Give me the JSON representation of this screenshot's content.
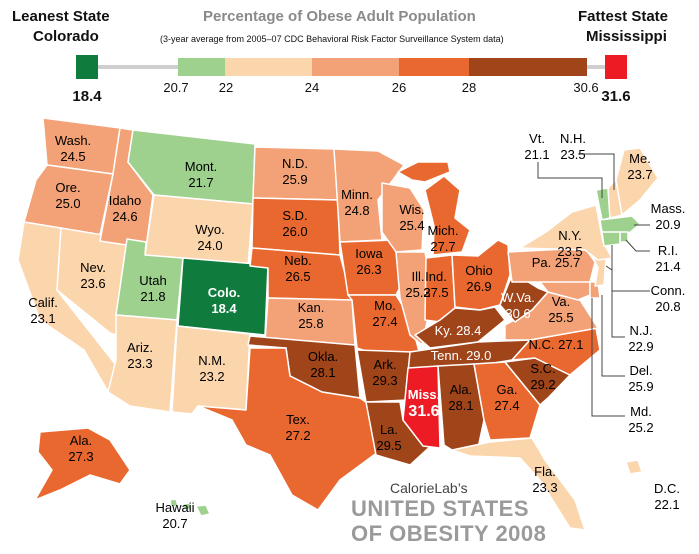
{
  "header": {
    "leanest_title": "Leanest State",
    "leanest_state": "Colorado",
    "leanest_value": "18.4",
    "fattest_title": "Fattest State",
    "fattest_state": "Mississippi",
    "fattest_value": "31.6",
    "title": "Percentage of Obese Adult Population",
    "subtitle": "(3-year average from 2005–07 CDC Behavioral Risk Factor Surveillance System data)"
  },
  "legend": {
    "ticks": [
      "20.7",
      "22",
      "24",
      "26",
      "28",
      "30.6"
    ],
    "bin_colors": [
      "#9ed18e",
      "#fbd5ac",
      "#f3a176",
      "#e8682f",
      "#a0441a"
    ],
    "min_color": "#0f7b3c",
    "max_color": "#ed1c24"
  },
  "states": [
    {
      "abbr": "Wash.",
      "value": "24.5",
      "color": "#f3a176"
    },
    {
      "abbr": "Ore.",
      "value": "25.0",
      "color": "#f3a176"
    },
    {
      "abbr": "Calif.",
      "value": "23.1",
      "color": "#fbd5ac"
    },
    {
      "abbr": "Nev.",
      "value": "23.6",
      "color": "#fbd5ac"
    },
    {
      "abbr": "Idaho",
      "value": "24.6",
      "color": "#f3a176"
    },
    {
      "abbr": "Mont.",
      "value": "21.7",
      "color": "#9ed18e"
    },
    {
      "abbr": "Wyo.",
      "value": "24.0",
      "color": "#fbd5ac"
    },
    {
      "abbr": "Utah",
      "value": "21.8",
      "color": "#9ed18e"
    },
    {
      "abbr": "Colo.",
      "value": "18.4",
      "color": "#0f7b3c"
    },
    {
      "abbr": "Ariz.",
      "value": "23.3",
      "color": "#fbd5ac"
    },
    {
      "abbr": "N.M.",
      "value": "23.2",
      "color": "#fbd5ac"
    },
    {
      "abbr": "N.D.",
      "value": "25.9",
      "color": "#f3a176"
    },
    {
      "abbr": "S.D.",
      "value": "26.0",
      "color": "#e8682f"
    },
    {
      "abbr": "Neb.",
      "value": "26.5",
      "color": "#e8682f"
    },
    {
      "abbr": "Kan.",
      "value": "25.8",
      "color": "#f3a176"
    },
    {
      "abbr": "Okla.",
      "value": "28.1",
      "color": "#a0441a"
    },
    {
      "abbr": "Tex.",
      "value": "27.2",
      "color": "#e8682f"
    },
    {
      "abbr": "Minn.",
      "value": "24.8",
      "color": "#f3a176"
    },
    {
      "abbr": "Iowa",
      "value": "26.3",
      "color": "#e8682f"
    },
    {
      "abbr": "Mo.",
      "value": "27.4",
      "color": "#e8682f"
    },
    {
      "abbr": "Ark.",
      "value": "29.3",
      "color": "#a0441a"
    },
    {
      "abbr": "La.",
      "value": "29.5",
      "color": "#a0441a"
    },
    {
      "abbr": "Wis.",
      "value": "25.4",
      "color": "#f3a176"
    },
    {
      "abbr": "Ill.",
      "value": "25.3",
      "color": "#f3a176"
    },
    {
      "abbr": "Mich.",
      "value": "27.7",
      "color": "#e8682f"
    },
    {
      "abbr": "Ind.",
      "value": "27.5",
      "color": "#e8682f"
    },
    {
      "abbr": "Ohio",
      "value": "26.9",
      "color": "#e8682f"
    },
    {
      "abbr": "Ky.",
      "value": "28.4",
      "color": "#a0441a"
    },
    {
      "abbr": "Tenn.",
      "value": "29.0",
      "color": "#a0441a"
    },
    {
      "abbr": "Miss.",
      "value": "31.6",
      "color": "#ed1c24"
    },
    {
      "abbr": "Ala.",
      "value": "28.1",
      "color": "#a0441a"
    },
    {
      "abbr": "Ga.",
      "value": "27.4",
      "color": "#e8682f"
    },
    {
      "abbr": "Fla.",
      "value": "23.3",
      "color": "#fbd5ac"
    },
    {
      "abbr": "S.C.",
      "value": "29.2",
      "color": "#a0441a"
    },
    {
      "abbr": "N.C.",
      "value": "27.1",
      "color": "#e8682f"
    },
    {
      "abbr": "Va.",
      "value": "25.5",
      "color": "#f3a176"
    },
    {
      "abbr": "W.Va.",
      "value": "30.6",
      "color": "#a0441a"
    },
    {
      "abbr": "Pa.",
      "value": "25.7",
      "color": "#f3a176"
    },
    {
      "abbr": "N.Y.",
      "value": "23.5",
      "color": "#fbd5ac"
    },
    {
      "abbr": "Vt.",
      "value": "21.1",
      "color": "#9ed18e"
    },
    {
      "abbr": "N.H.",
      "value": "23.5",
      "color": "#fbd5ac"
    },
    {
      "abbr": "Me.",
      "value": "23.7",
      "color": "#fbd5ac"
    },
    {
      "abbr": "Mass.",
      "value": "20.9",
      "color": "#9ed18e"
    },
    {
      "abbr": "R.I.",
      "value": "21.4",
      "color": "#9ed18e"
    },
    {
      "abbr": "Conn.",
      "value": "20.8",
      "color": "#9ed18e"
    },
    {
      "abbr": "N.J.",
      "value": "22.9",
      "color": "#fbd5ac"
    },
    {
      "abbr": "Del.",
      "value": "25.9",
      "color": "#f3a176"
    },
    {
      "abbr": "Md.",
      "value": "25.2",
      "color": "#f3a176"
    },
    {
      "abbr": "D.C.",
      "value": "22.1",
      "color": "#fbd5ac"
    },
    {
      "abbr": "Ala.",
      "value": "27.3",
      "color": "#e8682f"
    },
    {
      "abbr": "Hawaii",
      "value": "20.7",
      "color": "#9ed18e"
    }
  ],
  "branding": {
    "line1": "CalorieLab’s",
    "line2": "UNITED STATES",
    "line3": "OF OBESITY 2008"
  }
}
